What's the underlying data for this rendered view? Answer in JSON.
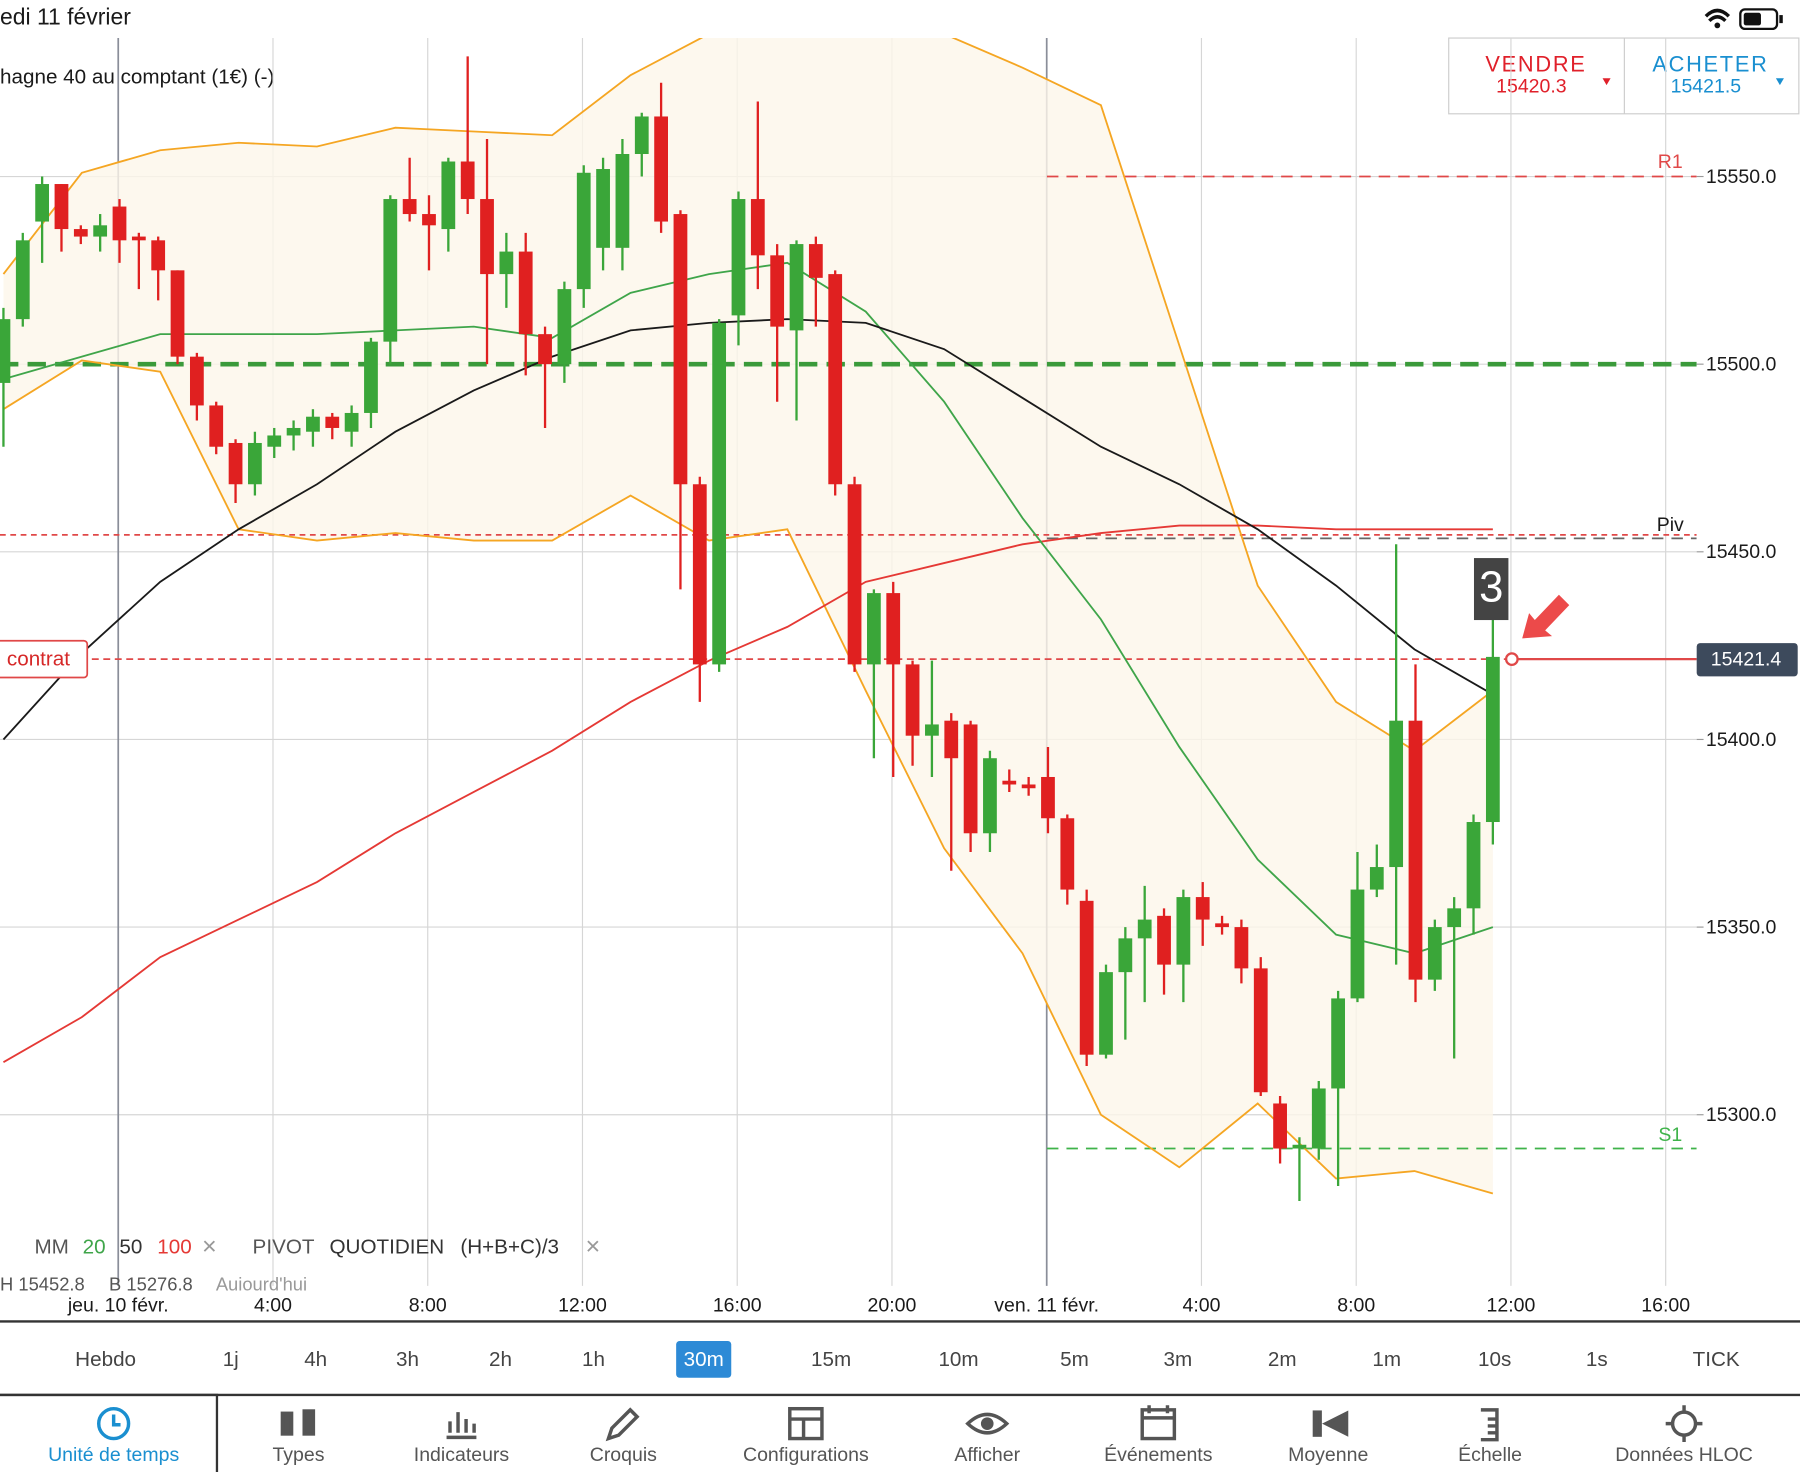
{
  "status_bar": {
    "date": "edi 11 février"
  },
  "instrument": "hagne 40 au comptant (1€) (-)",
  "trade": {
    "sell_label": "VENDRE",
    "sell_price": "15420.3",
    "buy_label": "ACHETER",
    "buy_price": "15421.5"
  },
  "chart_data": {
    "type": "candlestick",
    "up_color": "#3aa639",
    "down_color": "#e02020",
    "open": [
      15495,
      15512,
      15538,
      15548,
      15536,
      15534,
      15542,
      15534,
      15533,
      15525,
      15502,
      15489,
      15479,
      15468,
      15478,
      15481,
      15482,
      15486,
      15482,
      15487,
      15506,
      15544,
      15540,
      15536,
      15554,
      15544,
      15524,
      15530,
      15508,
      15500,
      15520,
      15531,
      15531,
      15556,
      15566,
      15540,
      15468,
      15420,
      15513,
      15544,
      15529,
      15509,
      15532,
      15524,
      15468,
      15420,
      15439,
      15420,
      15401,
      15405,
      15404,
      15375,
      15389,
      15388,
      15390,
      15379,
      15357,
      15316,
      15338,
      15347,
      15353,
      15340,
      15358,
      15351,
      15350,
      15339,
      15303,
      15291,
      15291,
      15307,
      15331,
      15360,
      15366,
      15405,
      15336,
      15350,
      15355,
      15378
    ],
    "high": [
      15515,
      15535,
      15550,
      15548,
      15537,
      15540,
      15544,
      15535,
      15534,
      15525,
      15503,
      15490,
      15480,
      15482,
      15483,
      15485,
      15488,
      15487,
      15489,
      15507,
      15545,
      15555,
      15545,
      15555,
      15582,
      15560,
      15535,
      15535,
      15510,
      15522,
      15553,
      15555,
      15560,
      15567,
      15575,
      15541,
      15470,
      15512,
      15546,
      15570,
      15532,
      15533,
      15534,
      15525,
      15470,
      15440,
      15442,
      15421,
      15421,
      15407,
      15405,
      15397,
      15392,
      15390,
      15398,
      15380,
      15360,
      15340,
      15350,
      15361,
      15355,
      15360,
      15362,
      15353,
      15352,
      15342,
      15305,
      15294,
      15309,
      15333,
      15370,
      15372,
      15452,
      15420,
      15352,
      15358,
      15380,
      15432
    ],
    "low": [
      15478,
      15510,
      15527,
      15530,
      15532,
      15530,
      15527,
      15520,
      15517,
      15500,
      15485,
      15476,
      15463,
      15465,
      15475,
      15477,
      15478,
      15480,
      15478,
      15483,
      15500,
      15538,
      15525,
      15530,
      15540,
      15500,
      15515,
      15497,
      15483,
      15495,
      15515,
      15525,
      15525,
      15550,
      15535,
      15440,
      15410,
      15418,
      15505,
      15520,
      15490,
      15485,
      15510,
      15465,
      15418,
      15395,
      15390,
      15393,
      15390,
      15365,
      15370,
      15370,
      15386,
      15385,
      15375,
      15356,
      15313,
      15315,
      15320,
      15330,
      15332,
      15330,
      15345,
      15348,
      15335,
      15305,
      15287,
      15277,
      15288,
      15281,
      15330,
      15358,
      15340,
      15330,
      15333,
      15315,
      15348,
      15372
    ],
    "close": [
      15512,
      15533,
      15548,
      15536,
      15534,
      15537,
      15533,
      15533,
      15525,
      15502,
      15489,
      15478,
      15468,
      15479,
      15481,
      15483,
      15486,
      15483,
      15487,
      15506,
      15544,
      15540,
      15537,
      15554,
      15544,
      15524,
      15530,
      15508,
      15500,
      15520,
      15551,
      15552,
      15556,
      15566,
      15538,
      15468,
      15420,
      15511,
      15544,
      15529,
      15510,
      15532,
      15523,
      15468,
      15420,
      15439,
      15420,
      15401,
      15404,
      15395,
      15375,
      15395,
      15388,
      15387,
      15379,
      15360,
      15316,
      15338,
      15347,
      15352,
      15340,
      15358,
      15352,
      15350,
      15339,
      15306,
      15291,
      15292,
      15307,
      15331,
      15360,
      15366,
      15405,
      15336,
      15350,
      15355,
      15378,
      15422
    ],
    "lines": [
      {
        "color": "#f5a623",
        "values": [
          15524,
          15551,
          15557,
          15559,
          15558,
          15563,
          15562,
          15561,
          15577,
          15588,
          15588,
          15588,
          15588,
          15579,
          15569,
          15505,
          15441,
          15410,
          15397,
          15413
        ]
      },
      {
        "color": "#f5a623",
        "values": [
          15488,
          15501,
          15498,
          15456,
          15453,
          15455,
          15453,
          15453,
          15465,
          15453,
          15456,
          15413,
          15371,
          15343,
          15300,
          15286,
          15303,
          15283,
          15285,
          15279
        ]
      },
      {
        "color": "#e53935",
        "values": [
          15314,
          15326,
          15342,
          15352,
          15362,
          15375,
          15386,
          15397,
          15410,
          15421,
          15430,
          15442,
          15447,
          15452,
          15455,
          15457,
          15457,
          15456,
          15456,
          15456
        ]
      },
      {
        "color": "#3fa54a",
        "values": [
          15496,
          15502,
          15508,
          15508,
          15508,
          15509,
          15510,
          15507,
          15519,
          15524,
          15527,
          15514,
          15490,
          15459,
          15432,
          15398,
          15368,
          15348,
          15343,
          15350
        ]
      },
      {
        "color": "#1a1a1a",
        "values": [
          15400,
          15423,
          15442,
          15456,
          15468,
          15482,
          15493,
          15502,
          15509,
          15511,
          15512,
          15511,
          15504,
          15491,
          15478,
          15468,
          15456,
          15441,
          15424,
          15412
        ]
      }
    ],
    "ylim": [
      15254.4,
      15586.9
    ],
    "yticks": [
      {
        "value": 15300,
        "label": "15300.0"
      },
      {
        "value": 15350,
        "label": "15350.0"
      },
      {
        "value": 15400,
        "label": "15400.0"
      },
      {
        "value": 15450,
        "label": "15450.0"
      },
      {
        "value": 15500,
        "label": "15500.0"
      },
      {
        "value": 15550,
        "label": "15550.0"
      }
    ],
    "xticks": [
      "jeu. 10 févr.",
      "4:00",
      "8:00",
      "12:00",
      "16:00",
      "20:00",
      "ven. 11 févr.",
      "4:00",
      "8:00",
      "12:00",
      "16:00"
    ],
    "grid": true,
    "levels": [
      {
        "label": "R1",
        "value": 15550,
        "color": "#e04848"
      },
      {
        "label": "Piv",
        "value": 15454.5,
        "color": "#e04848"
      },
      {
        "label": "S1",
        "value": 15291,
        "color": "#3fb34a"
      }
    ],
    "support_line": {
      "value": 15500,
      "color": "#3a9a3a"
    },
    "position": {
      "label": "contrat",
      "value": 15421.4
    },
    "current_price": 15421.4,
    "annotation": "3"
  },
  "legend": {
    "mm": "MM",
    "periods": [
      20,
      50,
      100
    ],
    "close": "×",
    "pivot": "PIVOT",
    "pivot_type": "QUOTIDIEN",
    "formula": "(H+B+C)/3",
    "close2": "×"
  },
  "hloc": [
    "H 15452.8",
    "B 15276.8",
    "Aujourd'hui"
  ],
  "timeframes": {
    "items": [
      "Hebdo",
      "1j",
      "4h",
      "3h",
      "2h",
      "1h",
      "30m",
      "15m",
      "10m",
      "5m",
      "3m",
      "2m",
      "1m",
      "10s",
      "1s",
      "TICK"
    ],
    "selected": 6
  },
  "toolbar": {
    "items": [
      "Unité de temps",
      "Types",
      "Indicateurs",
      "Croquis",
      "Configurations",
      "Afficher",
      "Événements",
      "Moyenne",
      "Échelle",
      "Données HLOC"
    ],
    "active": 0
  }
}
